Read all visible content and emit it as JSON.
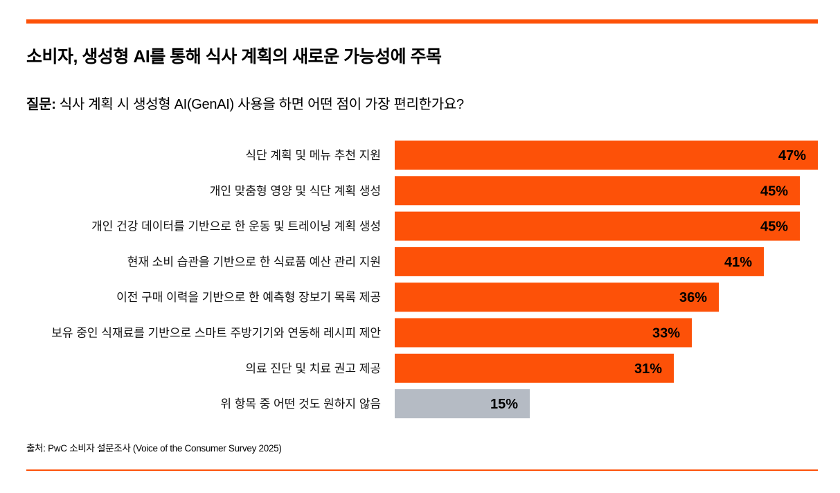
{
  "title": "소비자, 생성형 AI를 통해 식사 계획의 새로운 가능성에 주목",
  "question": {
    "label": "질문:",
    "text": " 식사 계획 시 생성형 AI(GenAI) 사용을 하면 어떤 점이 가장 편리한가요?"
  },
  "source": "출처: PwC 소비자 설문조사 (Voice of the Consumer Survey 2025)",
  "colors": {
    "accent": "#fd5108",
    "neutral": "#b5bbc4"
  },
  "chart_data": {
    "type": "bar",
    "orientation": "horizontal",
    "categories": [
      "식단 계획 및 메뉴 추천 지원",
      "개인 맞춤형 영양 및 식단 계획 생성",
      "개인 건강 데이터를 기반으로 한 운동 및 트레이닝 계획 생성",
      "현재 소비 습관을 기반으로 한 식료품 예산 관리 지원",
      "이전 구매 이력을 기반으로 한 예측형 장보기 목록 제공",
      "보유 중인 식재료를 기반으로 스마트 주방기기와 연동해 레시피 제안",
      "의료 진단 및 치료 권고 제공",
      "위 항목 중 어떤 것도 원하지 않음"
    ],
    "values": [
      47,
      45,
      45,
      41,
      36,
      33,
      31,
      15
    ],
    "data_labels": [
      "47%",
      "45%",
      "45%",
      "41%",
      "36%",
      "33%",
      "31%",
      "15%"
    ],
    "bar_colors": [
      "#fd5108",
      "#fd5108",
      "#fd5108",
      "#fd5108",
      "#fd5108",
      "#fd5108",
      "#fd5108",
      "#b5bbc4"
    ],
    "unit": "%",
    "xlim": [
      0,
      47
    ],
    "grid": false,
    "legend": "none"
  }
}
